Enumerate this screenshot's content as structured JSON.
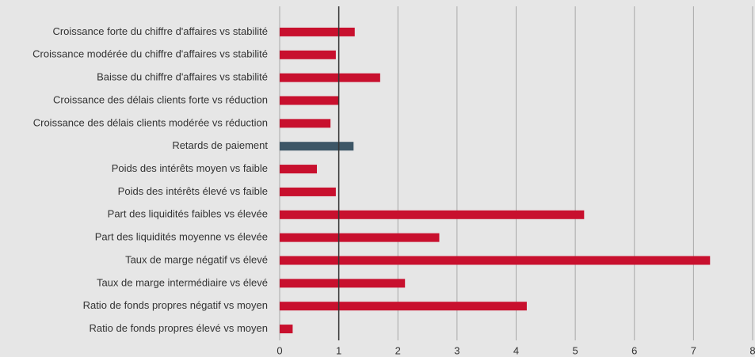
{
  "chart_data": {
    "type": "barh",
    "categories": [
      "Croissance forte du chiffre d'affaires vs stabilité",
      "Croissance modérée du chiffre d'affaires vs stabilité",
      "Baisse du chiffre d'affaires vs stabilité",
      "Croissance des délais clients forte vs réduction",
      "Croissance des délais clients modérée vs réduction",
      "Retards de paiement",
      "Poids des intérêts moyen vs faible",
      "Poids des intérêts élevé vs faible",
      "Part des liquidités faibles vs élevée",
      "Part des liquidités moyenne vs élevée",
      "Taux de marge négatif vs élevé",
      "Taux de marge intermédiaire vs élevé",
      "Ratio de fonds propres négatif vs moyen",
      "Ratio de fonds propres élevé vs moyen"
    ],
    "values": [
      1.27,
      0.95,
      1.7,
      1.0,
      0.86,
      1.25,
      0.63,
      0.95,
      5.15,
      2.7,
      7.28,
      2.12,
      4.18,
      0.22
    ],
    "colors": [
      "#c8102e",
      "#c8102e",
      "#c8102e",
      "#c8102e",
      "#c8102e",
      "#3d5666",
      "#c8102e",
      "#c8102e",
      "#c8102e",
      "#c8102e",
      "#c8102e",
      "#c8102e",
      "#c8102e",
      "#c8102e"
    ],
    "xlim": [
      0,
      8
    ],
    "xticks": [
      0,
      1,
      2,
      3,
      4,
      5,
      6,
      7,
      8
    ],
    "reference_line": 1,
    "grid": true
  }
}
